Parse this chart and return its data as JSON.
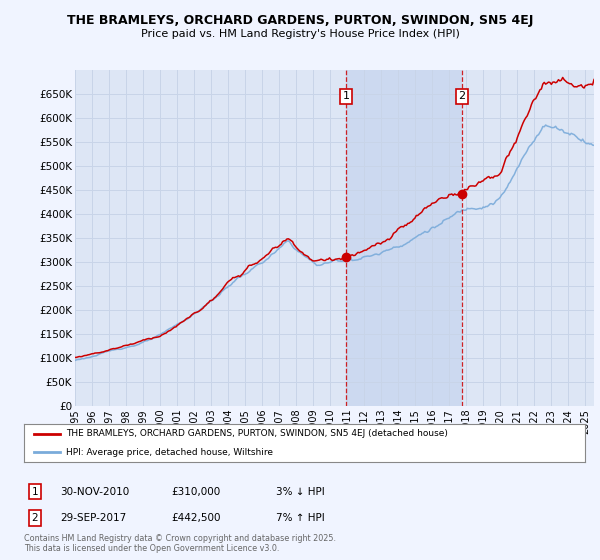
{
  "title": "THE BRAMLEYS, ORCHARD GARDENS, PURTON, SWINDON, SN5 4EJ",
  "subtitle": "Price paid vs. HM Land Registry's House Price Index (HPI)",
  "ylim": [
    0,
    700000
  ],
  "yticks": [
    0,
    50000,
    100000,
    150000,
    200000,
    250000,
    300000,
    350000,
    400000,
    450000,
    500000,
    550000,
    600000,
    650000
  ],
  "ytick_labels": [
    "£0",
    "£50K",
    "£100K",
    "£150K",
    "£200K",
    "£250K",
    "£300K",
    "£350K",
    "£400K",
    "£450K",
    "£500K",
    "£550K",
    "£600K",
    "£650K"
  ],
  "sale1_date": 2010.92,
  "sale1_price": 310000,
  "sale2_date": 2017.75,
  "sale2_price": 442500,
  "legend_red": "THE BRAMLEYS, ORCHARD GARDENS, PURTON, SWINDON, SN5 4EJ (detached house)",
  "legend_blue": "HPI: Average price, detached house, Wiltshire",
  "copyright": "Contains HM Land Registry data © Crown copyright and database right 2025.\nThis data is licensed under the Open Government Licence v3.0.",
  "bg_color": "#f0f4ff",
  "plot_bg_color": "#dde6f5",
  "highlight_color": "#ccd9f0",
  "red_color": "#cc0000",
  "blue_color": "#7aabda",
  "grid_color": "#c8d4e8",
  "title_fontsize": 9.0,
  "subtitle_fontsize": 8.0
}
